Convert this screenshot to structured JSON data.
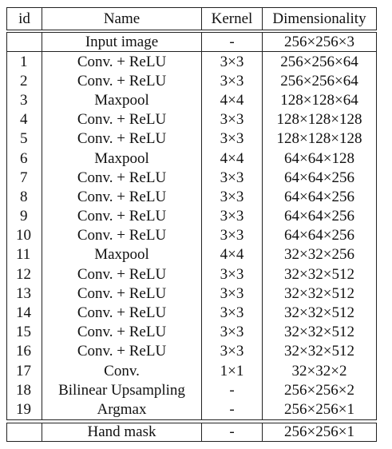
{
  "table": {
    "headers": {
      "id": "id",
      "name": "Name",
      "kernel": "Kernel",
      "dimensionality": "Dimensionality"
    },
    "input": {
      "id": "",
      "name": "Input image",
      "kernel": "-",
      "dimensionality": "256×256×3"
    },
    "layers": [
      {
        "id": "1",
        "name": "Conv. + ReLU",
        "kernel": "3×3",
        "dimensionality": "256×256×64"
      },
      {
        "id": "2",
        "name": "Conv. + ReLU",
        "kernel": "3×3",
        "dimensionality": "256×256×64"
      },
      {
        "id": "3",
        "name": "Maxpool",
        "kernel": "4×4",
        "dimensionality": "128×128×64"
      },
      {
        "id": "4",
        "name": "Conv. + ReLU",
        "kernel": "3×3",
        "dimensionality": "128×128×128"
      },
      {
        "id": "5",
        "name": "Conv. + ReLU",
        "kernel": "3×3",
        "dimensionality": "128×128×128"
      },
      {
        "id": "6",
        "name": "Maxpool",
        "kernel": "4×4",
        "dimensionality": "64×64×128"
      },
      {
        "id": "7",
        "name": "Conv. + ReLU",
        "kernel": "3×3",
        "dimensionality": "64×64×256"
      },
      {
        "id": "8",
        "name": "Conv. + ReLU",
        "kernel": "3×3",
        "dimensionality": "64×64×256"
      },
      {
        "id": "9",
        "name": "Conv. + ReLU",
        "kernel": "3×3",
        "dimensionality": "64×64×256"
      },
      {
        "id": "10",
        "name": "Conv. + ReLU",
        "kernel": "3×3",
        "dimensionality": "64×64×256"
      },
      {
        "id": "11",
        "name": "Maxpool",
        "kernel": "4×4",
        "dimensionality": "32×32×256"
      },
      {
        "id": "12",
        "name": "Conv. + ReLU",
        "kernel": "3×3",
        "dimensionality": "32×32×512"
      },
      {
        "id": "13",
        "name": "Conv. + ReLU",
        "kernel": "3×3",
        "dimensionality": "32×32×512"
      },
      {
        "id": "14",
        "name": "Conv. + ReLU",
        "kernel": "3×3",
        "dimensionality": "32×32×512"
      },
      {
        "id": "15",
        "name": "Conv. + ReLU",
        "kernel": "3×3",
        "dimensionality": "32×32×512"
      },
      {
        "id": "16",
        "name": "Conv. + ReLU",
        "kernel": "3×3",
        "dimensionality": "32×32×512"
      },
      {
        "id": "17",
        "name": "Conv.",
        "kernel": "1×1",
        "dimensionality": "32×32×2"
      },
      {
        "id": "18",
        "name": "Bilinear Upsampling",
        "kernel": "-",
        "dimensionality": "256×256×2"
      },
      {
        "id": "19",
        "name": "Argmax",
        "kernel": "-",
        "dimensionality": "256×256×1"
      }
    ],
    "output": {
      "id": "",
      "name": "Hand mask",
      "kernel": "-",
      "dimensionality": "256×256×1"
    }
  }
}
